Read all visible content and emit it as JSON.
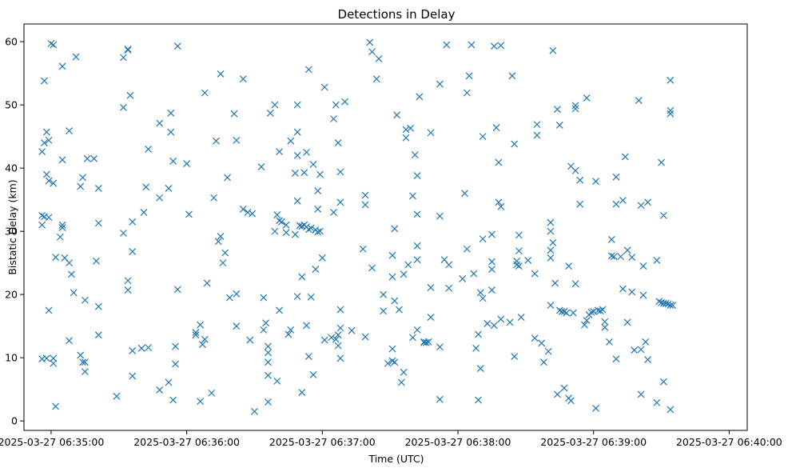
{
  "chart_data": {
    "type": "scatter",
    "title": "Detections in Delay",
    "xlabel": "Time (UTC)",
    "ylabel": "Bistatic Delay (km)",
    "x_unit": "seconds after 2025-03-27 06:35:00",
    "xlim": [
      -12,
      308
    ],
    "ylim": [
      -1.5,
      62.8
    ],
    "grid": false,
    "marker": "x",
    "color": "#1f77b4",
    "x_ticks": [
      {
        "value": 0,
        "label": "2025-03-27 06:35:00"
      },
      {
        "value": 60,
        "label": "2025-03-27 06:36:00"
      },
      {
        "value": 120,
        "label": "2025-03-27 06:37:00"
      },
      {
        "value": 180,
        "label": "2025-03-27 06:38:00"
      },
      {
        "value": 240,
        "label": "2025-03-27 06:39:00"
      },
      {
        "value": 300,
        "label": "2025-03-27 06:40:00"
      }
    ],
    "y_ticks": [
      {
        "value": 0,
        "label": "0"
      },
      {
        "value": 10,
        "label": "10"
      },
      {
        "value": 20,
        "label": "20"
      },
      {
        "value": 30,
        "label": "30"
      },
      {
        "value": 40,
        "label": "40"
      },
      {
        "value": 50,
        "label": "50"
      },
      {
        "value": 60,
        "label": "60"
      }
    ],
    "points": [
      [
        -4,
        42.6
      ],
      [
        -3,
        44
      ],
      [
        -2,
        45.7
      ],
      [
        -1,
        44.4
      ],
      [
        -4,
        32.5
      ],
      [
        -3,
        32.3
      ],
      [
        -1,
        32.2
      ],
      [
        -4,
        31
      ],
      [
        -3,
        53.8
      ],
      [
        -2,
        39
      ],
      [
        -1,
        38
      ],
      [
        1,
        37.6
      ],
      [
        0,
        59.7
      ],
      [
        1,
        59.5
      ],
      [
        5,
        56.1
      ],
      [
        11,
        57.6
      ],
      [
        -4,
        9.8
      ],
      [
        -2,
        9.9
      ],
      [
        1,
        9.1
      ],
      [
        1,
        9.9
      ],
      [
        2,
        2.3
      ],
      [
        -1,
        17.5
      ],
      [
        2,
        25.9
      ],
      [
        4,
        29.1
      ],
      [
        5,
        30.6
      ],
      [
        5,
        31
      ],
      [
        5,
        41.3
      ],
      [
        6,
        25.8
      ],
      [
        8,
        25
      ],
      [
        9,
        23.2
      ],
      [
        8,
        45.9
      ],
      [
        10,
        20.3
      ],
      [
        8,
        12.7
      ],
      [
        13,
        37.1
      ],
      [
        14,
        38.5
      ],
      [
        13,
        10.4
      ],
      [
        14,
        9.3
      ],
      [
        15,
        7.8
      ],
      [
        15,
        9.3
      ],
      [
        15,
        19.1
      ],
      [
        16,
        41.5
      ],
      [
        19,
        41.5
      ],
      [
        21,
        36.8
      ],
      [
        21,
        31.3
      ],
      [
        20,
        25.3
      ],
      [
        21,
        18.1
      ],
      [
        21,
        13.6
      ],
      [
        29,
        3.9
      ],
      [
        32,
        57.5
      ],
      [
        34,
        58.8
      ],
      [
        34,
        58.7
      ],
      [
        32,
        49.6
      ],
      [
        35,
        51.5
      ],
      [
        32,
        29.7
      ],
      [
        34,
        22.2
      ],
      [
        34,
        20.7
      ],
      [
        36,
        26.8
      ],
      [
        36,
        31.5
      ],
      [
        36,
        11.1
      ],
      [
        36,
        7.1
      ],
      [
        40,
        11.5
      ],
      [
        43,
        11.6
      ],
      [
        41,
        33
      ],
      [
        42,
        37
      ],
      [
        43,
        43
      ],
      [
        48,
        35.3
      ],
      [
        48,
        47.1
      ],
      [
        48,
        4.9
      ],
      [
        52,
        6.1
      ],
      [
        52,
        36.8
      ],
      [
        53,
        48.7
      ],
      [
        53,
        45.7
      ],
      [
        54,
        41.1
      ],
      [
        54,
        3.3
      ],
      [
        55,
        11.8
      ],
      [
        55,
        9
      ],
      [
        56,
        20.8
      ],
      [
        56,
        59.3
      ],
      [
        60,
        40.7
      ],
      [
        61,
        32.7
      ],
      [
        64,
        14
      ],
      [
        64,
        13.6
      ],
      [
        66,
        15.2
      ],
      [
        66,
        3.1
      ],
      [
        67,
        12.1
      ],
      [
        68,
        12.9
      ],
      [
        69,
        21.8
      ],
      [
        68,
        51.9
      ],
      [
        71,
        4.4
      ],
      [
        72,
        35.3
      ],
      [
        73,
        44.3
      ],
      [
        74,
        28.4
      ],
      [
        75,
        29.2
      ],
      [
        75,
        54.9
      ],
      [
        76,
        25
      ],
      [
        77,
        26.6
      ],
      [
        78,
        38.5
      ],
      [
        79,
        19.5
      ],
      [
        81,
        48.6
      ],
      [
        82,
        20.1
      ],
      [
        82,
        15
      ],
      [
        82,
        44.4
      ],
      [
        85,
        33.5
      ],
      [
        85,
        54.1
      ],
      [
        87,
        33
      ],
      [
        88,
        12.8
      ],
      [
        89,
        32.8
      ],
      [
        90,
        1.5
      ],
      [
        93,
        40.2
      ],
      [
        94,
        14.4
      ],
      [
        94,
        19.5
      ],
      [
        95,
        15.5
      ],
      [
        96,
        11.8
      ],
      [
        96,
        10.8
      ],
      [
        96,
        9.3
      ],
      [
        96,
        7.2
      ],
      [
        96,
        3
      ],
      [
        97,
        48.7
      ],
      [
        99,
        50
      ],
      [
        99,
        30
      ],
      [
        100,
        32.6
      ],
      [
        101,
        42.6
      ],
      [
        100,
        6.3
      ],
      [
        101,
        31.7
      ],
      [
        101,
        17.5
      ],
      [
        102,
        31.5
      ],
      [
        104,
        29.8
      ],
      [
        104,
        31
      ],
      [
        105,
        13.7
      ],
      [
        106,
        14.4
      ],
      [
        106,
        44.3
      ],
      [
        108,
        39.2
      ],
      [
        108,
        29.5
      ],
      [
        109,
        34.8
      ],
      [
        109,
        19.7
      ],
      [
        109,
        42
      ],
      [
        109,
        45.7
      ],
      [
        109,
        50
      ],
      [
        110,
        30.9
      ],
      [
        111,
        30.8
      ],
      [
        111,
        22.8
      ],
      [
        111,
        4.5
      ],
      [
        112,
        31
      ],
      [
        112,
        39.3
      ],
      [
        113,
        30.7
      ],
      [
        113,
        15.1
      ],
      [
        113,
        42.5
      ],
      [
        114,
        55.6
      ],
      [
        114,
        30.3
      ],
      [
        114,
        10.2
      ],
      [
        115,
        19.6
      ],
      [
        115,
        30.5
      ],
      [
        116,
        40.6
      ],
      [
        116,
        7.3
      ],
      [
        117,
        30.2
      ],
      [
        117,
        24
      ],
      [
        118,
        29.9
      ],
      [
        118,
        33.5
      ],
      [
        118,
        36.4
      ],
      [
        119,
        39
      ],
      [
        119,
        30
      ],
      [
        120,
        25.8
      ],
      [
        121,
        12.8
      ],
      [
        121,
        52.8
      ],
      [
        124,
        13.2
      ],
      [
        125,
        33
      ],
      [
        125,
        47.8
      ],
      [
        126,
        50
      ],
      [
        126,
        12.9
      ],
      [
        127,
        13.6
      ],
      [
        127,
        44
      ],
      [
        127,
        11.9
      ],
      [
        128,
        14.7
      ],
      [
        128,
        17.6
      ],
      [
        128,
        9.9
      ],
      [
        128,
        34.6
      ],
      [
        128,
        39.4
      ],
      [
        130,
        50.5
      ],
      [
        133,
        14.3
      ],
      [
        138,
        27.2
      ],
      [
        139,
        35.7
      ],
      [
        139,
        34.2
      ],
      [
        139,
        13.3
      ],
      [
        141,
        59.9
      ],
      [
        142,
        58.4
      ],
      [
        142,
        24.2
      ],
      [
        144,
        54.1
      ],
      [
        145,
        57.3
      ],
      [
        147,
        20
      ],
      [
        147,
        17.4
      ],
      [
        149,
        9.1
      ],
      [
        151,
        9.5
      ],
      [
        151,
        11.4
      ],
      [
        151,
        22.8
      ],
      [
        151,
        26.2
      ],
      [
        152,
        30.4
      ],
      [
        152,
        19
      ],
      [
        152,
        9.3
      ],
      [
        153,
        48.4
      ],
      [
        154,
        17.6
      ],
      [
        155,
        6.1
      ],
      [
        156,
        7.7
      ],
      [
        156,
        23.2
      ],
      [
        157,
        46.1
      ],
      [
        157,
        44.8
      ],
      [
        158,
        24.7
      ],
      [
        159,
        46.3
      ],
      [
        160,
        35.6
      ],
      [
        160,
        13.2
      ],
      [
        161,
        42.1
      ],
      [
        162,
        38.8
      ],
      [
        162,
        32.7
      ],
      [
        162,
        27.7
      ],
      [
        162,
        25.5
      ],
      [
        162,
        14.4
      ],
      [
        163,
        51.3
      ],
      [
        165,
        12.4
      ],
      [
        165,
        12.5
      ],
      [
        166,
        12.4
      ],
      [
        167,
        12.5
      ],
      [
        168,
        21.1
      ],
      [
        168,
        45.6
      ],
      [
        168,
        16.4
      ],
      [
        172,
        53.3
      ],
      [
        172,
        32.4
      ],
      [
        172,
        11.7
      ],
      [
        172,
        3.4
      ],
      [
        174,
        25.5
      ],
      [
        175,
        59.5
      ],
      [
        176,
        24.7
      ],
      [
        176,
        21
      ],
      [
        182,
        22.5
      ],
      [
        183,
        36
      ],
      [
        184,
        27.2
      ],
      [
        184,
        51.9
      ],
      [
        185,
        54.6
      ],
      [
        186,
        59.5
      ],
      [
        187,
        23.3
      ],
      [
        188,
        11.5
      ],
      [
        189,
        13.7
      ],
      [
        189,
        3.3
      ],
      [
        190,
        8.3
      ],
      [
        190,
        20.3
      ],
      [
        191,
        45
      ],
      [
        191,
        28.8
      ],
      [
        191,
        19.4
      ],
      [
        193,
        15.4
      ],
      [
        195,
        25.2
      ],
      [
        195,
        24
      ],
      [
        195,
        20.7
      ],
      [
        195,
        29.5
      ],
      [
        196,
        59.3
      ],
      [
        196,
        15.1
      ],
      [
        197,
        46.4
      ],
      [
        198,
        34.6
      ],
      [
        198,
        40.9
      ],
      [
        199,
        59.4
      ],
      [
        199,
        33.9
      ],
      [
        199,
        16.1
      ],
      [
        203,
        15.6
      ],
      [
        204,
        54.6
      ],
      [
        205,
        43.8
      ],
      [
        205,
        10.2
      ],
      [
        206,
        25.3
      ],
      [
        206,
        24.7
      ],
      [
        207,
        29.4
      ],
      [
        207,
        26.9
      ],
      [
        207,
        24.5
      ],
      [
        208,
        16.4
      ],
      [
        211,
        25.4
      ],
      [
        214,
        23.3
      ],
      [
        214,
        13.1
      ],
      [
        215,
        46.9
      ],
      [
        215,
        45.2
      ],
      [
        217,
        12.3
      ],
      [
        218,
        9.3
      ],
      [
        220,
        11
      ],
      [
        221,
        27
      ],
      [
        221,
        25.8
      ],
      [
        221,
        31.4
      ],
      [
        221,
        30
      ],
      [
        221,
        18.3
      ],
      [
        222,
        58.6
      ],
      [
        222,
        28.2
      ],
      [
        223,
        21.8
      ],
      [
        224,
        4.2
      ],
      [
        224,
        49.3
      ],
      [
        225,
        46.8
      ],
      [
        225,
        17.5
      ],
      [
        226,
        17.3
      ],
      [
        227,
        17.3
      ],
      [
        227,
        5.2
      ],
      [
        228,
        17.1
      ],
      [
        229,
        24.5
      ],
      [
        229,
        3.6
      ],
      [
        230,
        3.2
      ],
      [
        230,
        40.3
      ],
      [
        231,
        17.1
      ],
      [
        232,
        21.7
      ],
      [
        232,
        39.6
      ],
      [
        232,
        49.4
      ],
      [
        232,
        49.9
      ],
      [
        234,
        38.1
      ],
      [
        234,
        34.3
      ],
      [
        237,
        51.1
      ],
      [
        236,
        15.2
      ],
      [
        237,
        15.9
      ],
      [
        238,
        16.8
      ],
      [
        239,
        17.2
      ],
      [
        240,
        17.3
      ],
      [
        241,
        2
      ],
      [
        241,
        37.9
      ],
      [
        242,
        17.5
      ],
      [
        243,
        17.4
      ],
      [
        244,
        17.6
      ],
      [
        245,
        14.8
      ],
      [
        245,
        15.7
      ],
      [
        247,
        12.5
      ],
      [
        248,
        28.7
      ],
      [
        248,
        26.1
      ],
      [
        249,
        26
      ],
      [
        250,
        34.3
      ],
      [
        250,
        38.6
      ],
      [
        250,
        9.8
      ],
      [
        252,
        26
      ],
      [
        253,
        20.9
      ],
      [
        253,
        34.9
      ],
      [
        254,
        41.8
      ],
      [
        255,
        27
      ],
      [
        255,
        15.6
      ],
      [
        257,
        20.4
      ],
      [
        257,
        25.9
      ],
      [
        258,
        11.2
      ],
      [
        260,
        50.7
      ],
      [
        261,
        34.1
      ],
      [
        261,
        11.3
      ],
      [
        261,
        4.2
      ],
      [
        262,
        24.5
      ],
      [
        262,
        19.9
      ],
      [
        263,
        12.5
      ],
      [
        264,
        9.7
      ],
      [
        264,
        34.6
      ],
      [
        268,
        2.9
      ],
      [
        268,
        25.4
      ],
      [
        269,
        18.9
      ],
      [
        270,
        18.7
      ],
      [
        270,
        40.9
      ],
      [
        271,
        32.5
      ],
      [
        271,
        6.2
      ],
      [
        271,
        18.6
      ],
      [
        272,
        18.6
      ],
      [
        273,
        18.5
      ],
      [
        274,
        18.3
      ],
      [
        274,
        53.9
      ],
      [
        274,
        48.6
      ],
      [
        274,
        49.1
      ],
      [
        274,
        1.8
      ],
      [
        275,
        18.3
      ]
    ]
  }
}
